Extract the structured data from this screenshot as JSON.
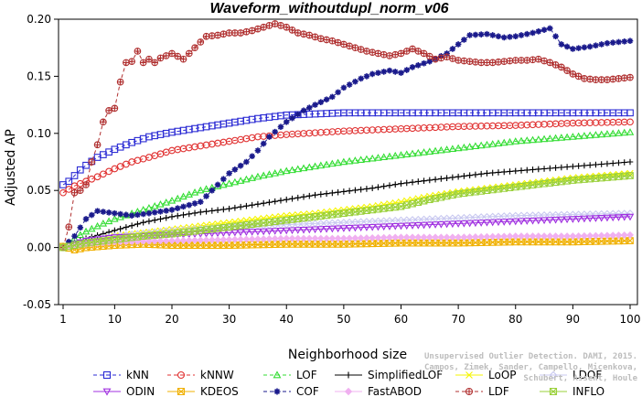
{
  "chart_data": {
    "type": "line",
    "title": "Waveform_withoutdupl_norm_v06",
    "xlabel": "Neighborhood size",
    "ylabel": "Adjusted AP",
    "xlim": [
      1,
      100
    ],
    "ylim": [
      -0.05,
      0.2
    ],
    "x_ticks": [
      1,
      10,
      20,
      30,
      40,
      50,
      60,
      70,
      80,
      90,
      100
    ],
    "y_ticks": [
      -0.05,
      0.0,
      0.05,
      0.1,
      0.15,
      0.2
    ],
    "y_tick_labels": [
      "-0.05",
      "0.00",
      "0.05",
      "0.10",
      "0.15",
      "0.20"
    ],
    "grid": false,
    "legend_position": "bottom",
    "series": [
      {
        "name": "kNN",
        "color": "#2b2bd4",
        "marker": "square",
        "dash": true,
        "points": [
          [
            1,
            0.055
          ],
          [
            2,
            0.058
          ],
          [
            3,
            0.063
          ],
          [
            4,
            0.068
          ],
          [
            5,
            0.072
          ],
          [
            7,
            0.079
          ],
          [
            10,
            0.086
          ],
          [
            13,
            0.092
          ],
          [
            16,
            0.097
          ],
          [
            20,
            0.101
          ],
          [
            25,
            0.105
          ],
          [
            30,
            0.109
          ],
          [
            35,
            0.113
          ],
          [
            40,
            0.116
          ],
          [
            45,
            0.117
          ],
          [
            50,
            0.118
          ],
          [
            60,
            0.118
          ],
          [
            70,
            0.118
          ],
          [
            80,
            0.118
          ],
          [
            90,
            0.118
          ],
          [
            100,
            0.118
          ]
        ]
      },
      {
        "name": "kNNW",
        "color": "#e03030",
        "marker": "circle",
        "dash": true,
        "points": [
          [
            1,
            0.048
          ],
          [
            2,
            0.051
          ],
          [
            3,
            0.054
          ],
          [
            5,
            0.058
          ],
          [
            7,
            0.062
          ],
          [
            10,
            0.069
          ],
          [
            13,
            0.075
          ],
          [
            16,
            0.079
          ],
          [
            20,
            0.085
          ],
          [
            25,
            0.089
          ],
          [
            30,
            0.093
          ],
          [
            35,
            0.097
          ],
          [
            40,
            0.099
          ],
          [
            50,
            0.102
          ],
          [
            60,
            0.104
          ],
          [
            70,
            0.106
          ],
          [
            80,
            0.107
          ],
          [
            90,
            0.109
          ],
          [
            100,
            0.11
          ]
        ]
      },
      {
        "name": "LOF",
        "color": "#33dd33",
        "marker": "triangle",
        "dash": true,
        "points": [
          [
            1,
            0.001
          ],
          [
            3,
            0.008
          ],
          [
            5,
            0.014
          ],
          [
            8,
            0.021
          ],
          [
            10,
            0.025
          ],
          [
            15,
            0.033
          ],
          [
            20,
            0.041
          ],
          [
            25,
            0.05
          ],
          [
            30,
            0.056
          ],
          [
            35,
            0.062
          ],
          [
            40,
            0.067
          ],
          [
            45,
            0.071
          ],
          [
            50,
            0.075
          ],
          [
            55,
            0.078
          ],
          [
            60,
            0.081
          ],
          [
            65,
            0.084
          ],
          [
            70,
            0.087
          ],
          [
            75,
            0.09
          ],
          [
            80,
            0.093
          ],
          [
            85,
            0.095
          ],
          [
            90,
            0.097
          ],
          [
            95,
            0.099
          ],
          [
            100,
            0.101
          ]
        ]
      },
      {
        "name": "SimplifiedLOF",
        "color": "#000000",
        "marker": "plus",
        "dash": false,
        "points": [
          [
            1,
            0.0
          ],
          [
            3,
            0.004
          ],
          [
            5,
            0.008
          ],
          [
            8,
            0.012
          ],
          [
            10,
            0.015
          ],
          [
            15,
            0.022
          ],
          [
            20,
            0.027
          ],
          [
            25,
            0.031
          ],
          [
            30,
            0.034
          ],
          [
            35,
            0.038
          ],
          [
            40,
            0.042
          ],
          [
            45,
            0.046
          ],
          [
            50,
            0.049
          ],
          [
            55,
            0.052
          ],
          [
            60,
            0.056
          ],
          [
            65,
            0.059
          ],
          [
            70,
            0.062
          ],
          [
            75,
            0.065
          ],
          [
            80,
            0.067
          ],
          [
            85,
            0.069
          ],
          [
            90,
            0.071
          ],
          [
            95,
            0.073
          ],
          [
            100,
            0.075
          ]
        ]
      },
      {
        "name": "LoOP",
        "color": "#f5f500",
        "marker": "cross",
        "dash": false,
        "points": [
          [
            1,
            0.0
          ],
          [
            5,
            0.004
          ],
          [
            10,
            0.01
          ],
          [
            15,
            0.013
          ],
          [
            20,
            0.016
          ],
          [
            25,
            0.019
          ],
          [
            30,
            0.022
          ],
          [
            35,
            0.025
          ],
          [
            40,
            0.028
          ],
          [
            45,
            0.03
          ],
          [
            50,
            0.033
          ],
          [
            55,
            0.036
          ],
          [
            60,
            0.04
          ],
          [
            65,
            0.045
          ],
          [
            70,
            0.049
          ],
          [
            75,
            0.052
          ],
          [
            80,
            0.055
          ],
          [
            85,
            0.058
          ],
          [
            90,
            0.061
          ],
          [
            95,
            0.063
          ],
          [
            100,
            0.065
          ]
        ]
      },
      {
        "name": "LDOF",
        "color": "#c8c8f0",
        "marker": "diamond",
        "dash": false,
        "points": [
          [
            1,
            0.0
          ],
          [
            5,
            0.006
          ],
          [
            10,
            0.01
          ],
          [
            20,
            0.015
          ],
          [
            30,
            0.018
          ],
          [
            40,
            0.02
          ],
          [
            50,
            0.022
          ],
          [
            60,
            0.024
          ],
          [
            70,
            0.026
          ],
          [
            80,
            0.028
          ],
          [
            90,
            0.029
          ],
          [
            100,
            0.03
          ]
        ]
      },
      {
        "name": "ODIN",
        "color": "#a030e0",
        "marker": "triangle-down",
        "dash": false,
        "points": [
          [
            1,
            0.0
          ],
          [
            3,
            0.003
          ],
          [
            5,
            0.006
          ],
          [
            10,
            0.009
          ],
          [
            20,
            0.011
          ],
          [
            30,
            0.013
          ],
          [
            40,
            0.015
          ],
          [
            50,
            0.017
          ],
          [
            60,
            0.019
          ],
          [
            70,
            0.021
          ],
          [
            80,
            0.023
          ],
          [
            90,
            0.025
          ],
          [
            100,
            0.027
          ]
        ]
      },
      {
        "name": "KDEOS",
        "color": "#f0b000",
        "marker": "box-x",
        "dash": false,
        "points": [
          [
            1,
            0.001
          ],
          [
            3,
            -0.002
          ],
          [
            5,
            0.0
          ],
          [
            10,
            0.002
          ],
          [
            15,
            0.003
          ],
          [
            20,
            0.002
          ],
          [
            30,
            0.002
          ],
          [
            40,
            0.003
          ],
          [
            50,
            0.003
          ],
          [
            60,
            0.004
          ],
          [
            70,
            0.004
          ],
          [
            80,
            0.005
          ],
          [
            90,
            0.005
          ],
          [
            100,
            0.006
          ]
        ]
      },
      {
        "name": "COF",
        "color": "#1a1a8c",
        "marker": "asterisk",
        "dash": true,
        "points": [
          [
            1,
            0.0
          ],
          [
            3,
            0.01
          ],
          [
            5,
            0.025
          ],
          [
            7,
            0.032
          ],
          [
            10,
            0.03
          ],
          [
            13,
            0.028
          ],
          [
            16,
            0.03
          ],
          [
            20,
            0.033
          ],
          [
            25,
            0.04
          ],
          [
            28,
            0.055
          ],
          [
            30,
            0.065
          ],
          [
            33,
            0.075
          ],
          [
            35,
            0.085
          ],
          [
            37,
            0.097
          ],
          [
            40,
            0.11
          ],
          [
            43,
            0.12
          ],
          [
            45,
            0.125
          ],
          [
            48,
            0.132
          ],
          [
            50,
            0.14
          ],
          [
            53,
            0.148
          ],
          [
            55,
            0.152
          ],
          [
            58,
            0.155
          ],
          [
            60,
            0.153
          ],
          [
            62,
            0.158
          ],
          [
            65,
            0.163
          ],
          [
            68,
            0.17
          ],
          [
            70,
            0.178
          ],
          [
            72,
            0.186
          ],
          [
            75,
            0.187
          ],
          [
            78,
            0.184
          ],
          [
            80,
            0.185
          ],
          [
            83,
            0.188
          ],
          [
            86,
            0.192
          ],
          [
            88,
            0.178
          ],
          [
            90,
            0.174
          ],
          [
            93,
            0.176
          ],
          [
            96,
            0.179
          ],
          [
            100,
            0.181
          ]
        ]
      },
      {
        "name": "FastABOD",
        "color": "#f0b0f0",
        "marker": "diamond-filled",
        "dash": false,
        "points": [
          [
            1,
            0.0
          ],
          [
            5,
            0.003
          ],
          [
            10,
            0.005
          ],
          [
            20,
            0.006
          ],
          [
            30,
            0.007
          ],
          [
            40,
            0.008
          ],
          [
            50,
            0.008
          ],
          [
            60,
            0.009
          ],
          [
            70,
            0.009
          ],
          [
            80,
            0.01
          ],
          [
            90,
            0.01
          ],
          [
            100,
            0.011
          ]
        ]
      },
      {
        "name": "LDF",
        "color": "#b03030",
        "marker": "circle-plus",
        "dash": true,
        "points": [
          [
            1,
            0.0
          ],
          [
            2,
            0.018
          ],
          [
            3,
            0.048
          ],
          [
            4,
            0.05
          ],
          [
            5,
            0.055
          ],
          [
            6,
            0.075
          ],
          [
            7,
            0.09
          ],
          [
            8,
            0.11
          ],
          [
            9,
            0.12
          ],
          [
            10,
            0.122
          ],
          [
            11,
            0.145
          ],
          [
            12,
            0.162
          ],
          [
            13,
            0.163
          ],
          [
            14,
            0.172
          ],
          [
            15,
            0.162
          ],
          [
            16,
            0.165
          ],
          [
            17,
            0.162
          ],
          [
            18,
            0.166
          ],
          [
            20,
            0.17
          ],
          [
            22,
            0.165
          ],
          [
            24,
            0.175
          ],
          [
            26,
            0.185
          ],
          [
            28,
            0.186
          ],
          [
            30,
            0.188
          ],
          [
            32,
            0.188
          ],
          [
            34,
            0.19
          ],
          [
            36,
            0.193
          ],
          [
            38,
            0.196
          ],
          [
            40,
            0.193
          ],
          [
            42,
            0.188
          ],
          [
            44,
            0.186
          ],
          [
            46,
            0.183
          ],
          [
            48,
            0.181
          ],
          [
            50,
            0.178
          ],
          [
            52,
            0.175
          ],
          [
            54,
            0.172
          ],
          [
            56,
            0.17
          ],
          [
            58,
            0.168
          ],
          [
            60,
            0.17
          ],
          [
            62,
            0.174
          ],
          [
            64,
            0.17
          ],
          [
            66,
            0.165
          ],
          [
            68,
            0.167
          ],
          [
            70,
            0.164
          ],
          [
            72,
            0.163
          ],
          [
            74,
            0.162
          ],
          [
            76,
            0.162
          ],
          [
            78,
            0.163
          ],
          [
            80,
            0.164
          ],
          [
            82,
            0.164
          ],
          [
            84,
            0.165
          ],
          [
            86,
            0.162
          ],
          [
            88,
            0.158
          ],
          [
            90,
            0.152
          ],
          [
            92,
            0.148
          ],
          [
            94,
            0.147
          ],
          [
            96,
            0.147
          ],
          [
            98,
            0.148
          ],
          [
            100,
            0.149
          ]
        ]
      },
      {
        "name": "INFLO",
        "color": "#9ad03a",
        "marker": "box-x",
        "dash": false,
        "points": [
          [
            1,
            0.0
          ],
          [
            5,
            0.004
          ],
          [
            10,
            0.007
          ],
          [
            15,
            0.01
          ],
          [
            20,
            0.012
          ],
          [
            25,
            0.015
          ],
          [
            30,
            0.018
          ],
          [
            35,
            0.021
          ],
          [
            40,
            0.024
          ],
          [
            45,
            0.027
          ],
          [
            50,
            0.03
          ],
          [
            55,
            0.033
          ],
          [
            60,
            0.036
          ],
          [
            65,
            0.042
          ],
          [
            70,
            0.047
          ],
          [
            75,
            0.05
          ],
          [
            80,
            0.053
          ],
          [
            85,
            0.056
          ],
          [
            90,
            0.059
          ],
          [
            95,
            0.061
          ],
          [
            100,
            0.063
          ]
        ]
      }
    ]
  },
  "legend_rows": [
    [
      "kNN",
      "kNNW",
      "LOF",
      "SimplifiedLOF",
      "LoOP",
      "LDOF"
    ],
    [
      "ODIN",
      "KDEOS",
      "COF",
      "FastABOD",
      "LDF",
      "INFLO"
    ]
  ],
  "watermark": {
    "line1": "Unsupervised Outlier Detection. DAMI, 2015.",
    "line2": "Campos, Zimek, Sander, Campello, Micenkova, Schubert, Assent, Houle"
  }
}
